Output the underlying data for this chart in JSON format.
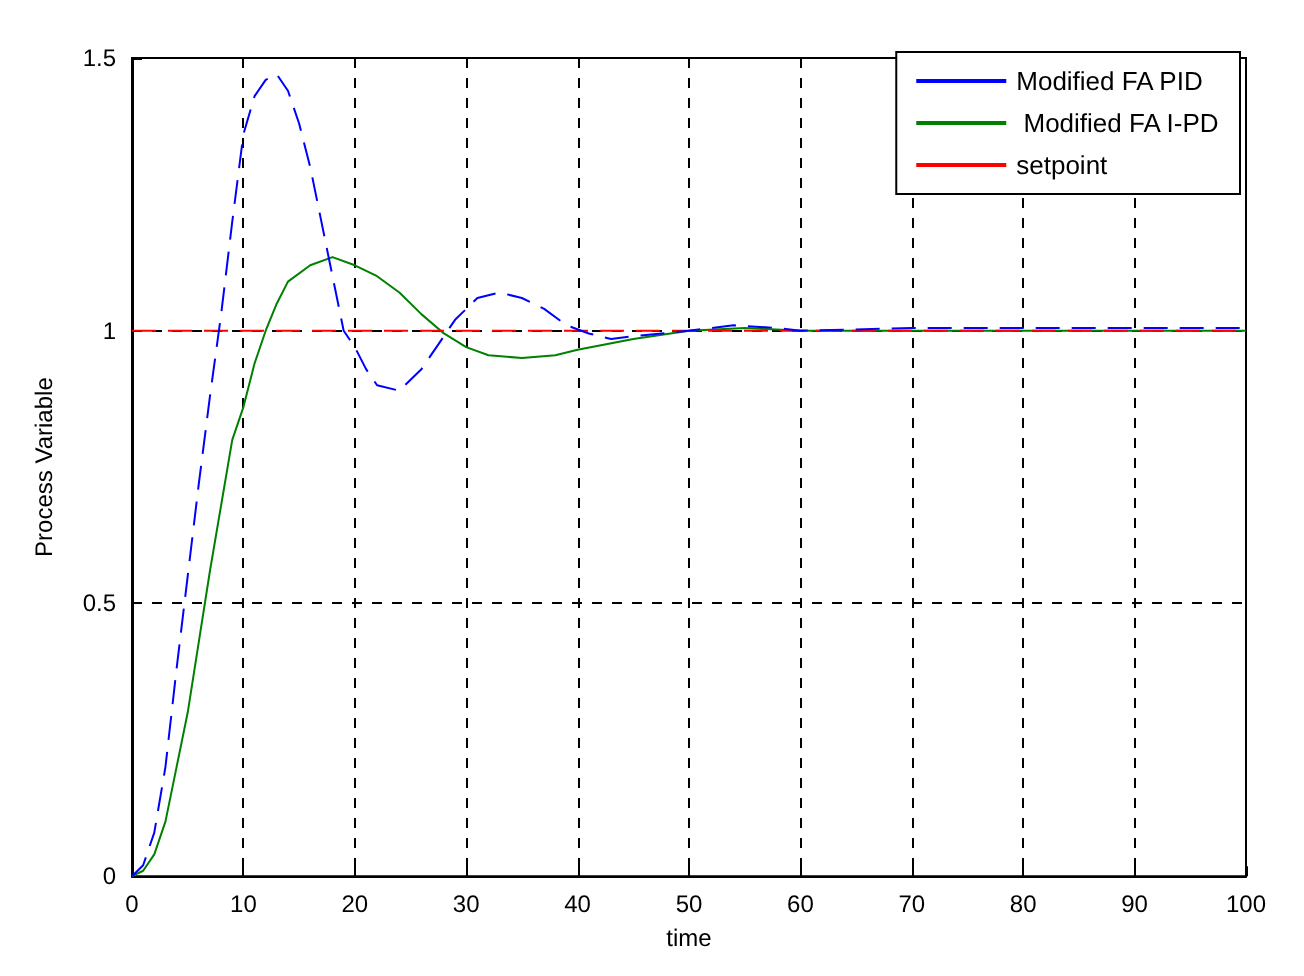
{
  "chart_data": {
    "type": "line",
    "xlabel": "time",
    "ylabel": "Process Variable",
    "xlim": [
      0,
      100
    ],
    "ylim": [
      0,
      1.5
    ],
    "xticks": [
      0,
      10,
      20,
      30,
      40,
      50,
      60,
      70,
      80,
      90,
      100
    ],
    "yticks": [
      0,
      0.5,
      1,
      1.5
    ],
    "grid": true,
    "legend": "top right",
    "marker": "none",
    "series": [
      {
        "name": "Modified FA PID",
        "color": "#0000ff",
        "line_style": "dashed",
        "x": [
          0,
          1,
          2,
          3,
          4,
          5,
          6,
          7,
          8,
          9,
          10,
          11,
          12,
          13,
          14,
          15,
          16,
          17,
          18,
          19,
          20,
          21,
          22,
          24,
          26,
          28,
          29,
          31,
          33,
          35,
          37,
          39,
          41,
          43,
          45,
          50,
          54,
          58,
          60,
          70,
          80,
          90,
          100
        ],
        "values": [
          0,
          0.02,
          0.08,
          0.2,
          0.38,
          0.55,
          0.72,
          0.88,
          1.03,
          1.2,
          1.36,
          1.43,
          1.46,
          1.47,
          1.44,
          1.38,
          1.3,
          1.2,
          1.1,
          1.0,
          0.97,
          0.93,
          0.9,
          0.89,
          0.93,
          0.99,
          1.02,
          1.06,
          1.07,
          1.06,
          1.04,
          1.01,
          0.995,
          0.985,
          0.99,
          1.0,
          1.01,
          1.005,
          1.0,
          1.005,
          1.005,
          1.005,
          1.005
        ]
      },
      {
        "name": " Modified FA I-PD",
        "color": "#008000",
        "line_style": "solid",
        "x": [
          0,
          1,
          2,
          3,
          4,
          5,
          6,
          7,
          8,
          9,
          10,
          11,
          12,
          13,
          14,
          16,
          18,
          20,
          22,
          24,
          26,
          28,
          30,
          32,
          35,
          38,
          40,
          45,
          50,
          55,
          60,
          100
        ],
        "values": [
          0,
          0.01,
          0.04,
          0.1,
          0.2,
          0.3,
          0.43,
          0.56,
          0.68,
          0.8,
          0.86,
          0.94,
          1.0,
          1.05,
          1.09,
          1.12,
          1.135,
          1.12,
          1.1,
          1.07,
          1.03,
          0.995,
          0.97,
          0.955,
          0.95,
          0.955,
          0.965,
          0.985,
          1.0,
          1.005,
          1.0,
          1.0
        ]
      },
      {
        "name": "setpoint",
        "color": "#ff0000",
        "line_style": "dashed",
        "x": [
          0,
          100
        ],
        "values": [
          1,
          1
        ]
      }
    ]
  }
}
